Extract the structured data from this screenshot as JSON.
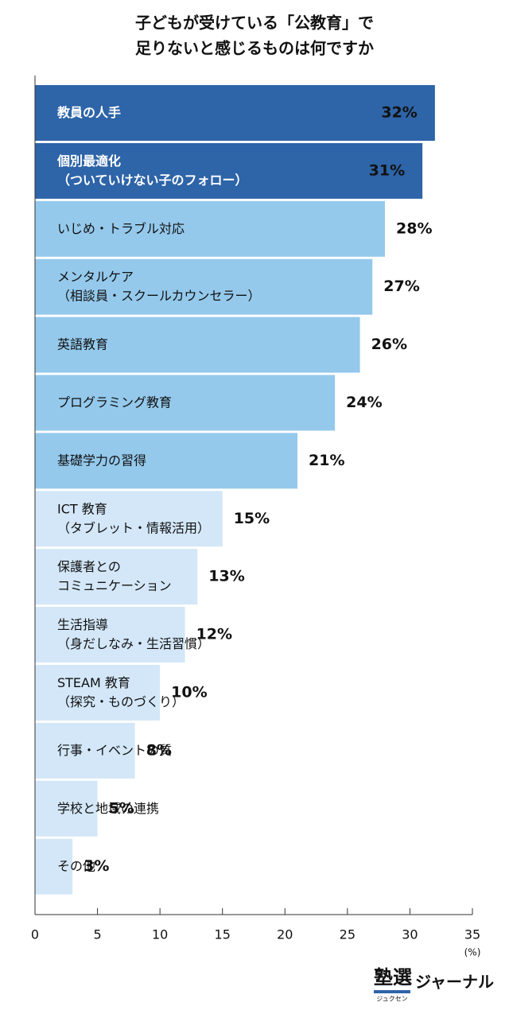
{
  "chart_data": {
    "type": "barh",
    "title": [
      "子どもが受けている「公教育」で",
      "足りないと感じるものは何ですか"
    ],
    "categories": [
      [
        "教員の人手"
      ],
      [
        "個別最適化",
        "（ついていけない子のフォロー）"
      ],
      [
        "いじめ・トラブル対応"
      ],
      [
        "メンタルケア",
        "（相談員・スクールカウンセラー）"
      ],
      [
        "英語教育"
      ],
      [
        "プログラミング教育"
      ],
      [
        "基礎学力の習得"
      ],
      [
        "ICT 教育",
        "（タブレット・情報活用）"
      ],
      [
        "保護者との",
        "コミュニケーション"
      ],
      [
        "生活指導",
        "（身だしなみ・生活習慣）"
      ],
      [
        "STEAM 教育",
        "（探究・ものづくり）"
      ],
      [
        "行事・イベントの質"
      ],
      [
        "学校と地域の連携"
      ],
      [
        "その他"
      ]
    ],
    "values": [
      32,
      31,
      28,
      27,
      26,
      24,
      21,
      15,
      13,
      12,
      10,
      8,
      5,
      3
    ],
    "value_labels": [
      "32%",
      "31%",
      "28%",
      "27%",
      "26%",
      "24%",
      "21%",
      "15%",
      "13%",
      "12%",
      "10%",
      "8%",
      "5%",
      "3%"
    ],
    "colors": [
      "#2e64a8",
      "#2e64a8",
      "#94c9ec",
      "#94c9ec",
      "#94c9ec",
      "#94c9ec",
      "#94c9ec",
      "#d3e7f8",
      "#d3e7f8",
      "#d3e7f8",
      "#d3e7f8",
      "#d3e7f8",
      "#d3e7f8",
      "#d3e7f8"
    ],
    "xlim": [
      0,
      35
    ],
    "xticks": [
      0,
      5,
      10,
      15,
      20,
      25,
      30,
      35
    ],
    "x_unit": "(%)",
    "logo": {
      "main": "塾選",
      "sub": "ジュクセン",
      "name": "ジャーナル"
    }
  }
}
